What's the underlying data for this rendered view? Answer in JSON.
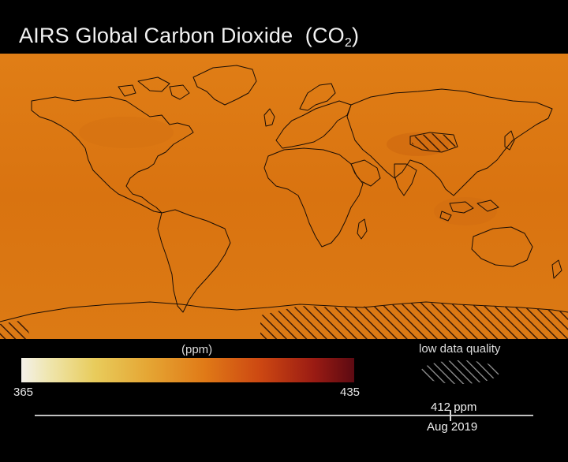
{
  "title": {
    "prefix": "AIRS Global Carbon Dioxide",
    "formula_main": "(CO",
    "formula_sub": "2",
    "formula_end": ")"
  },
  "colorbar": {
    "unit_label": "(ppm)",
    "min_label": "365",
    "max_label": "435",
    "colors": [
      "#f4f1ea",
      "#efe6b0",
      "#e8cc5c",
      "#e5a634",
      "#e07a17",
      "#cc4712",
      "#9a1b13",
      "#5c0a12"
    ]
  },
  "legend": {
    "low_quality_label": "low data quality"
  },
  "timeline": {
    "ppm_value": "412 ppm",
    "date_label": "Aug 2019"
  },
  "map": {
    "base_color": "#dc7a12",
    "coastline_color": "#1a0d05",
    "hatch_color": "#3a1a08"
  }
}
